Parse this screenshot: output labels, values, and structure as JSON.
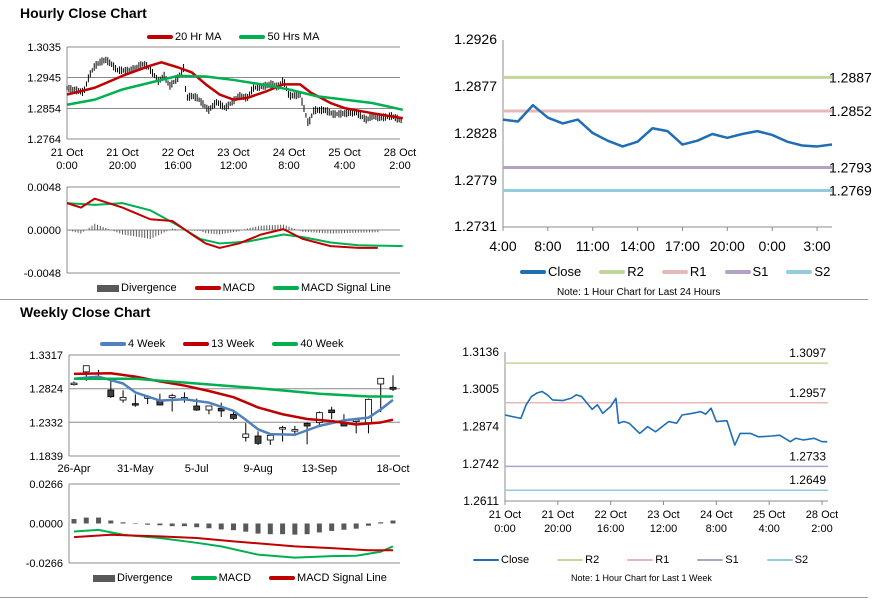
{
  "sections": {
    "hourly_title": "Hourly Close Chart",
    "weekly_title": "Weekly Close Chart"
  },
  "legends": {
    "hourly_price": [
      {
        "label": "20 Hr MA",
        "color": "#c00000"
      },
      {
        "label": "50 Hrs MA",
        "color": "#00b050"
      }
    ],
    "hourly_macd": [
      {
        "label": "Divergence",
        "color": "#595959"
      },
      {
        "label": "MACD",
        "color": "#c00000"
      },
      {
        "label": "MACD Signal Line",
        "color": "#00b050"
      }
    ],
    "day_levels": [
      {
        "label": "Close",
        "color": "#1f6db5"
      },
      {
        "label": "R2",
        "color": "#c3d69b"
      },
      {
        "label": "R1",
        "color": "#e6b9b8"
      },
      {
        "label": "S1",
        "color": "#b3a2c7"
      },
      {
        "label": "S2",
        "color": "#93cddd"
      }
    ],
    "weekly_price": [
      {
        "label": "4 Week",
        "color": "#4f81bd"
      },
      {
        "label": "13 Week",
        "color": "#c00000"
      },
      {
        "label": "40 Week",
        "color": "#00b050"
      }
    ],
    "weekly_macd": [
      {
        "label": "Divergence",
        "color": "#595959"
      },
      {
        "label": "MACD",
        "color": "#00b050"
      },
      {
        "label": "MACD Signal Line",
        "color": "#c00000"
      }
    ],
    "week_levels": [
      {
        "label": "Close",
        "color": "#1f6db5"
      },
      {
        "label": "R2",
        "color": "#c3d69b"
      },
      {
        "label": "R1",
        "color": "#e6b9b8"
      },
      {
        "label": "S1",
        "color": "#b3a2c7"
      },
      {
        "label": "S2",
        "color": "#93cddd"
      }
    ]
  },
  "notes": {
    "day": "Note: 1 Hour Chart for Last 24 Hours",
    "week": "Note: 1 Hour Chart for Last 1 Week"
  },
  "chart_data": [
    {
      "id": "hourly_price",
      "type": "line",
      "title": "Hourly Close Chart",
      "ylim": [
        1.2764,
        1.3035
      ],
      "yticks": [
        "1.3035",
        "1.2945",
        "1.2854",
        "1.2764"
      ],
      "xlim": [
        0,
        120
      ],
      "xticks": [
        {
          "x": 0,
          "l1": "21 Oct",
          "l2": "0:00"
        },
        {
          "x": 20,
          "l1": "21 Oct",
          "l2": "20:00"
        },
        {
          "x": 40,
          "l1": "22 Oct",
          "l2": "16:00"
        },
        {
          "x": 60,
          "l1": "23 Oct",
          "l2": "12:00"
        },
        {
          "x": 80,
          "l1": "24 Oct",
          "l2": "8:00"
        },
        {
          "x": 100,
          "l1": "25 Oct",
          "l2": "4:00"
        },
        {
          "x": 120,
          "l1": "28 Oct",
          "l2": "2:00"
        }
      ],
      "grid": true,
      "close": {
        "x": [
          0,
          4,
          6,
          8,
          10,
          12,
          14,
          16,
          18,
          22,
          25,
          27,
          29,
          33,
          35,
          37,
          40,
          42,
          43,
          45,
          47,
          51,
          54,
          57,
          62,
          65,
          67,
          71,
          74,
          76,
          78,
          80,
          84,
          87,
          89,
          93,
          96,
          101,
          104,
          108,
          110,
          113,
          117,
          120,
          121
        ],
        "y": [
          1.2914,
          1.2906,
          1.2902,
          1.295,
          1.2979,
          1.2991,
          1.2997,
          1.2985,
          1.2967,
          1.2965,
          1.2973,
          1.2985,
          1.2979,
          1.2934,
          1.295,
          1.292,
          1.2944,
          1.2973,
          1.2885,
          1.2891,
          1.2885,
          1.2849,
          1.2873,
          1.2855,
          1.2891,
          1.2885,
          1.2914,
          1.292,
          1.2926,
          1.2917,
          1.2938,
          1.2891,
          1.2894,
          1.2808,
          1.2849,
          1.2849,
          1.2837,
          1.284,
          1.2843,
          1.282,
          1.2832,
          1.2826,
          1.2832,
          1.282,
          1.282
        ]
      },
      "series": [
        {
          "name": "20 Hr MA",
          "color": "#c00000",
          "x": [
            0,
            10,
            20,
            30,
            34,
            40,
            45,
            50,
            55,
            60,
            65,
            72,
            78,
            84,
            88,
            95,
            100,
            110,
            121
          ],
          "y": [
            1.2895,
            1.2915,
            1.295,
            1.298,
            1.299,
            1.2975,
            1.296,
            1.2925,
            1.2895,
            1.288,
            1.2885,
            1.2905,
            1.2925,
            1.2925,
            1.29,
            1.287,
            1.2855,
            1.284,
            1.2825
          ]
        },
        {
          "name": "50 Hrs MA",
          "color": "#00b050",
          "x": [
            0,
            10,
            20,
            30,
            40,
            50,
            60,
            70,
            80,
            90,
            100,
            110,
            121
          ],
          "y": [
            1.2865,
            1.288,
            1.291,
            1.293,
            1.295,
            1.2948,
            1.2938,
            1.2925,
            1.291,
            1.289,
            1.288,
            1.287,
            1.285
          ]
        }
      ]
    },
    {
      "id": "hourly_macd",
      "type": "line",
      "ylim": [
        -0.0048,
        0.0048
      ],
      "yticks": [
        "0.0048",
        "0.0000",
        "-0.0048"
      ],
      "xlim": [
        0,
        120
      ],
      "series": [
        {
          "name": "MACD",
          "color": "#c00000",
          "x": [
            0,
            5,
            10,
            20,
            30,
            38,
            45,
            50,
            55,
            62,
            70,
            78,
            85,
            95,
            105,
            112
          ],
          "y": [
            0.003,
            0.0025,
            0.0035,
            0.0025,
            0.0012,
            0.001,
            -0.0005,
            -0.0015,
            -0.002,
            -0.0015,
            -0.0005,
            0.0001,
            -0.001,
            -0.0018,
            -0.002,
            -0.002
          ]
        },
        {
          "name": "MACD Signal Line",
          "color": "#00b050",
          "x": [
            0,
            10,
            20,
            30,
            40,
            48,
            55,
            65,
            78,
            85,
            95,
            105,
            121
          ],
          "y": [
            0.003,
            0.0028,
            0.003,
            0.0022,
            0.0005,
            -0.001,
            -0.0015,
            -0.0013,
            -0.0005,
            -0.0008,
            -0.0014,
            -0.0017,
            -0.0018
          ]
        }
      ]
    },
    {
      "id": "day_levels",
      "type": "line",
      "ylim": [
        1.2731,
        1.2926
      ],
      "yticks": [
        "1.2926",
        "1.2877",
        "1.2828",
        "1.2779",
        "1.2731"
      ],
      "xticks": [
        {
          "i": 0,
          "l": "4:00"
        },
        {
          "i": 3,
          "l": "8:00"
        },
        {
          "i": 6,
          "l": "11:00"
        },
        {
          "i": 9,
          "l": "14:00"
        },
        {
          "i": 12,
          "l": "17:00"
        },
        {
          "i": 15,
          "l": "20:00"
        },
        {
          "i": 18,
          "l": "0:00"
        },
        {
          "i": 21,
          "l": "3:00"
        }
      ],
      "close": [
        1.2843,
        1.2841,
        1.2858,
        1.2845,
        1.2839,
        1.2843,
        1.2829,
        1.2821,
        1.2815,
        1.282,
        1.2834,
        1.2831,
        1.2817,
        1.2821,
        1.2828,
        1.2824,
        1.2828,
        1.2831,
        1.2827,
        1.282,
        1.2816,
        1.2815,
        1.2817
      ],
      "levels": [
        {
          "name": "R2",
          "value": 1.2887,
          "label": "1.2887",
          "color": "#c3d69b"
        },
        {
          "name": "R1",
          "value": 1.2852,
          "label": "1.2852",
          "color": "#e6b9b8"
        },
        {
          "name": "S1",
          "value": 1.2793,
          "label": "1.2793",
          "color": "#b3a2c7"
        },
        {
          "name": "S2",
          "value": 1.2769,
          "label": "1.2769",
          "color": "#93cddd"
        }
      ]
    },
    {
      "id": "weekly_price",
      "type": "candlestick",
      "title": "Weekly Close Chart",
      "ylim": [
        1.1839,
        1.3317
      ],
      "yticks": [
        "1.3317",
        "1.2824",
        "1.2332",
        "1.1839"
      ],
      "xticks": [
        {
          "i": 0,
          "l": "26-Apr"
        },
        {
          "i": 5,
          "l": "31-May"
        },
        {
          "i": 10,
          "l": "5-Jul"
        },
        {
          "i": 15,
          "l": "9-Aug"
        },
        {
          "i": 20,
          "l": "13-Sep"
        },
        {
          "i": 26,
          "l": "18-Oct"
        }
      ],
      "grid": true,
      "candles": [
        [
          1.2898,
          1.2905,
          1.293,
          1.287
        ],
        [
          1.307,
          1.316,
          1.316,
          1.294
        ],
        [
          1.299,
          1.299,
          1.31,
          1.297
        ],
        [
          1.2805,
          1.2707,
          1.296,
          1.269
        ],
        [
          1.2658,
          1.2697,
          1.28,
          1.262
        ],
        [
          1.2605,
          1.2595,
          1.274,
          1.256
        ],
        [
          1.2695,
          1.2705,
          1.273,
          1.26
        ],
        [
          1.2658,
          1.2585,
          1.275,
          1.259
        ],
        [
          1.2693,
          1.2722,
          1.275,
          1.249
        ],
        [
          1.2685,
          1.2695,
          1.277,
          1.262
        ],
        [
          1.2571,
          1.2512,
          1.268,
          1.25
        ],
        [
          1.2512,
          1.2571,
          1.257,
          1.245
        ],
        [
          1.2537,
          1.2498,
          1.262,
          1.241
        ],
        [
          1.2449,
          1.239,
          1.252,
          1.237
        ],
        [
          1.2112,
          1.2161,
          1.232,
          1.205
        ],
        [
          1.2132,
          1.2024,
          1.22,
          1.2
        ],
        [
          1.2073,
          1.2141,
          1.216,
          1.2
        ],
        [
          1.2245,
          1.2255,
          1.228,
          1.205
        ],
        [
          1.2215,
          1.2225,
          1.228,
          1.213
        ],
        [
          1.2317,
          1.2278,
          1.233,
          1.201
        ],
        [
          1.2327,
          1.2473,
          1.249,
          1.227
        ],
        [
          1.2512,
          1.2473,
          1.256,
          1.238
        ],
        [
          1.2317,
          1.2278,
          1.245,
          1.23
        ],
        [
          1.2355,
          1.2365,
          1.236,
          1.217
        ],
        [
          1.2327,
          1.2668,
          1.268,
          1.217
        ],
        [
          1.2893,
          1.2976,
          1.298,
          1.248
        ],
        [
          1.2844,
          1.2815,
          1.302,
          1.279
        ]
      ],
      "candle_fields": [
        "open",
        "close",
        "high",
        "low"
      ],
      "series": [
        {
          "name": "4 Week",
          "color": "#4f81bd",
          "x": [
            0,
            2,
            4,
            5,
            7,
            9,
            11,
            13,
            14,
            15,
            16,
            18,
            20,
            22,
            24,
            25,
            26
          ],
          "y": [
            1.297,
            1.3,
            1.29,
            1.277,
            1.265,
            1.267,
            1.262,
            1.25,
            1.237,
            1.223,
            1.216,
            1.215,
            1.228,
            1.236,
            1.24,
            1.252,
            1.266
          ]
        },
        {
          "name": "13 Week",
          "color": "#c00000",
          "x": [
            0,
            3,
            5,
            7,
            9,
            11,
            13,
            15,
            17,
            19,
            21,
            23,
            25,
            26
          ],
          "y": [
            1.304,
            1.305,
            1.3,
            1.293,
            1.287,
            1.279,
            1.27,
            1.255,
            1.245,
            1.238,
            1.235,
            1.23,
            1.233,
            1.237
          ]
        },
        {
          "name": "40 Week",
          "color": "#00b050",
          "x": [
            0,
            5,
            10,
            15,
            20,
            24,
            26
          ],
          "y": [
            1.297,
            1.297,
            1.29,
            1.283,
            1.275,
            1.271,
            1.271
          ]
        }
      ]
    },
    {
      "id": "weekly_macd",
      "type": "bar+line",
      "ylim": [
        -0.0266,
        0.0266
      ],
      "yticks": [
        "0.0266",
        "0.0000",
        "-0.0266"
      ],
      "divergence": [
        0.003,
        0.004,
        0.004,
        0.002,
        0.0008,
        0,
        -0.0008,
        -0.0012,
        -0.0018,
        -0.0018,
        -0.0025,
        -0.0032,
        -0.004,
        -0.0045,
        -0.0055,
        -0.0068,
        -0.0072,
        -0.0072,
        -0.0075,
        -0.0072,
        -0.006,
        -0.005,
        -0.0042,
        -0.0035,
        -0.0015,
        0.0008,
        0.002
      ],
      "series": [
        {
          "name": "MACD",
          "color": "#00b050",
          "x": [
            0,
            2,
            4,
            7,
            10,
            12,
            15,
            18,
            21,
            23,
            25,
            26
          ],
          "y": [
            -0.0054,
            -0.0043,
            -0.0076,
            -0.0098,
            -0.013,
            -0.0154,
            -0.021,
            -0.023,
            -0.022,
            -0.0217,
            -0.019,
            -0.0154
          ]
        },
        {
          "name": "MACD Signal Line",
          "color": "#c00000",
          "x": [
            0,
            3,
            7,
            10,
            13,
            18,
            21,
            24,
            26
          ],
          "y": [
            -0.0092,
            -0.0076,
            -0.0087,
            -0.0098,
            -0.012,
            -0.0154,
            -0.0166,
            -0.018,
            -0.018
          ]
        }
      ]
    },
    {
      "id": "week_levels",
      "type": "line",
      "ylim": [
        1.2611,
        1.3136
      ],
      "yticks": [
        "1.3136",
        "1.3005",
        "1.2874",
        "1.2742",
        "1.2611"
      ],
      "xlim": [
        0,
        120
      ],
      "xticks": [
        {
          "x": 0,
          "l1": "21 Oct",
          "l2": "0:00"
        },
        {
          "x": 20,
          "l1": "21 Oct",
          "l2": "20:00"
        },
        {
          "x": 40,
          "l1": "22 Oct",
          "l2": "16:00"
        },
        {
          "x": 60,
          "l1": "23 Oct",
          "l2": "12:00"
        },
        {
          "x": 80,
          "l1": "24 Oct",
          "l2": "8:00"
        },
        {
          "x": 100,
          "l1": "25 Oct",
          "l2": "4:00"
        },
        {
          "x": 120,
          "l1": "28 Oct",
          "l2": "2:00"
        }
      ],
      "close": {
        "x": [
          0,
          4,
          6,
          8,
          10,
          12,
          14,
          16,
          18,
          22,
          25,
          27,
          29,
          33,
          35,
          37,
          40,
          42,
          43,
          45,
          47,
          51,
          54,
          57,
          62,
          65,
          67,
          71,
          74,
          76,
          78,
          80,
          84,
          87,
          89,
          93,
          96,
          101,
          104,
          108,
          110,
          113,
          117,
          120,
          122
        ],
        "y": [
          1.2914,
          1.2906,
          1.2902,
          1.295,
          1.2979,
          1.2991,
          1.2997,
          1.2985,
          1.2967,
          1.2965,
          1.2973,
          1.2985,
          1.2979,
          1.2934,
          1.295,
          1.292,
          1.2944,
          1.2973,
          1.2885,
          1.2891,
          1.2885,
          1.2849,
          1.2873,
          1.2855,
          1.2891,
          1.2885,
          1.2914,
          1.292,
          1.2926,
          1.2917,
          1.2938,
          1.2891,
          1.2894,
          1.2808,
          1.2849,
          1.2849,
          1.2837,
          1.284,
          1.2843,
          1.282,
          1.2832,
          1.2826,
          1.2832,
          1.282,
          1.282
        ]
      },
      "levels": [
        {
          "name": "R2",
          "value": 1.3097,
          "label": "1.3097",
          "color": "#c3d69b"
        },
        {
          "name": "R1",
          "value": 1.2957,
          "label": "1.2957",
          "color": "#e6b9b8"
        },
        {
          "name": "S1",
          "value": 1.2733,
          "label": "1.2733",
          "color": "#b3a2c7"
        },
        {
          "name": "S2",
          "value": 1.2649,
          "label": "1.2649",
          "color": "#93cddd"
        }
      ]
    }
  ]
}
